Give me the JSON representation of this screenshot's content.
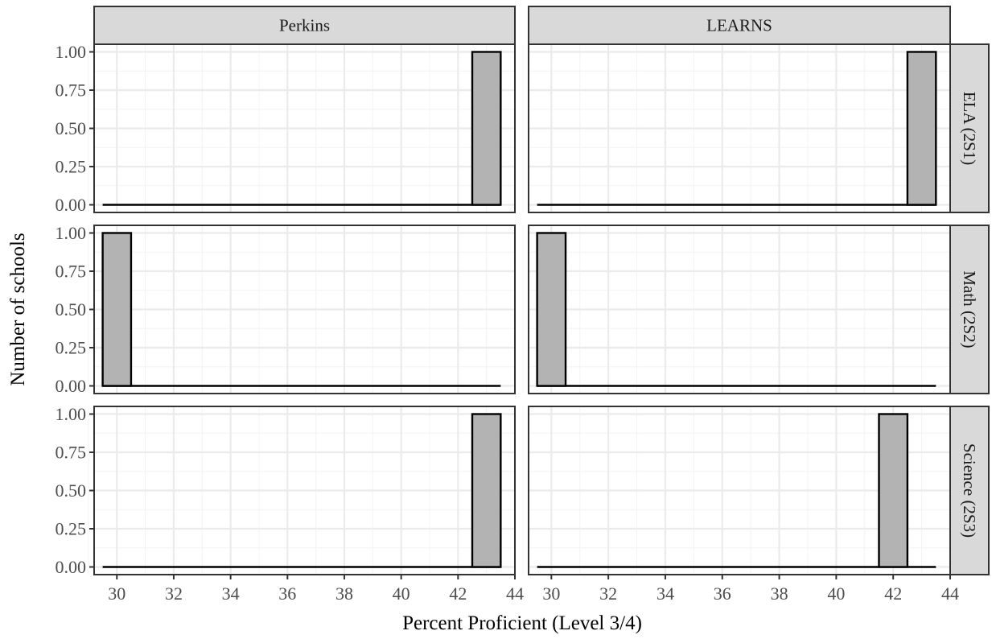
{
  "chart_data": {
    "type": "bar",
    "subtype": "faceted-histogram",
    "xlabel": "Percent Proficient (Level 3/4)",
    "ylabel": "Number of schools",
    "xlim": [
      29.5,
      43.5
    ],
    "ylim": [
      0,
      1
    ],
    "x_ticks": [
      30,
      32,
      34,
      36,
      38,
      40,
      42,
      44
    ],
    "y_ticks": [
      0,
      0.25,
      0.5,
      0.75,
      1
    ],
    "y_tick_labels": [
      "0.00",
      "0.25",
      "0.50",
      "0.75",
      "1.00"
    ],
    "bin_width": 1,
    "grid": true,
    "bar_fill": "#b3b3b3",
    "bar_outline": "#000000",
    "column_facets": [
      "Perkins",
      "LEARNS"
    ],
    "row_facets": [
      "ELA (2S1)",
      "Math (2S2)",
      "Science (2S3)"
    ],
    "panels": [
      {
        "column": "Perkins",
        "row": "ELA (2S1)",
        "bars": [
          {
            "x": 43,
            "count": 1
          }
        ]
      },
      {
        "column": "LEARNS",
        "row": "ELA (2S1)",
        "bars": [
          {
            "x": 43,
            "count": 1
          }
        ]
      },
      {
        "column": "Perkins",
        "row": "Math (2S2)",
        "bars": [
          {
            "x": 30,
            "count": 1
          }
        ]
      },
      {
        "column": "LEARNS",
        "row": "Math (2S2)",
        "bars": [
          {
            "x": 30,
            "count": 1
          }
        ]
      },
      {
        "column": "Perkins",
        "row": "Science (2S3)",
        "bars": [
          {
            "x": 43,
            "count": 1
          }
        ]
      },
      {
        "column": "LEARNS",
        "row": "Science (2S3)",
        "bars": [
          {
            "x": 42,
            "count": 1
          }
        ]
      }
    ]
  }
}
